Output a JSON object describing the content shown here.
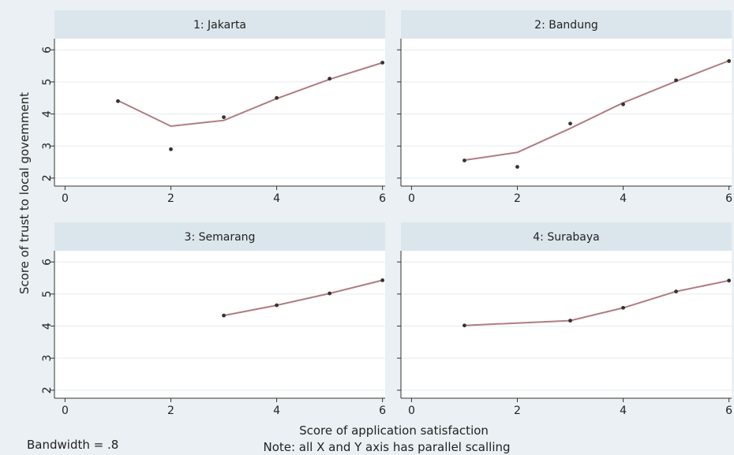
{
  "chart_data": {
    "type": "scatter",
    "ylabel": "Score of trust to local govemment",
    "xlabel": "Score of application satisfaction",
    "note": "Note: all X and Y axis has parallel scalling",
    "bandwidth_label": "Bandwidth = .8",
    "xlim": [
      -0.2,
      6.05
    ],
    "ylim": [
      1.75,
      6.35
    ],
    "x_ticks": [
      "0",
      "2",
      "4",
      "6"
    ],
    "y_ticks": [
      "2",
      "3",
      "4",
      "5",
      "6"
    ],
    "grid": true,
    "colors": {
      "background": "#eaf0f3",
      "plot": "#ffffff",
      "strip": "#dbe6ec",
      "line": "#b07c80",
      "point": "#333333",
      "grid": "#e6eaee"
    },
    "panels": [
      {
        "title": "1: Jakarta",
        "points": [
          [
            1,
            4.4
          ],
          [
            2,
            2.9
          ],
          [
            3,
            3.9
          ],
          [
            4,
            4.5
          ],
          [
            5,
            5.1
          ],
          [
            6,
            5.6
          ]
        ],
        "smooth": [
          [
            1,
            4.42
          ],
          [
            2,
            3.62
          ],
          [
            3,
            3.8
          ],
          [
            4,
            4.48
          ],
          [
            5,
            5.08
          ],
          [
            6,
            5.6
          ]
        ]
      },
      {
        "title": "2: Bandung",
        "points": [
          [
            1,
            2.55
          ],
          [
            2,
            2.35
          ],
          [
            3,
            3.7
          ],
          [
            4,
            4.3
          ],
          [
            5,
            5.05
          ],
          [
            6,
            5.65
          ]
        ],
        "smooth": [
          [
            1,
            2.56
          ],
          [
            2,
            2.8
          ],
          [
            3,
            3.55
          ],
          [
            4,
            4.35
          ],
          [
            5,
            5.02
          ],
          [
            6,
            5.66
          ]
        ]
      },
      {
        "title": "3: Semarang",
        "points": [
          [
            3,
            4.33
          ],
          [
            4,
            4.65
          ],
          [
            5,
            5.02
          ],
          [
            6,
            5.43
          ]
        ],
        "smooth": [
          [
            3,
            4.33
          ],
          [
            4,
            4.65
          ],
          [
            5,
            5.02
          ],
          [
            6,
            5.43
          ]
        ]
      },
      {
        "title": "4: Surabaya",
        "points": [
          [
            1,
            4.02
          ],
          [
            3,
            4.17
          ],
          [
            4,
            4.57
          ],
          [
            5,
            5.08
          ],
          [
            6,
            5.42
          ]
        ],
        "smooth": [
          [
            1,
            4.02
          ],
          [
            3,
            4.17
          ],
          [
            4,
            4.57
          ],
          [
            5,
            5.08
          ],
          [
            6,
            5.42
          ]
        ]
      }
    ]
  }
}
